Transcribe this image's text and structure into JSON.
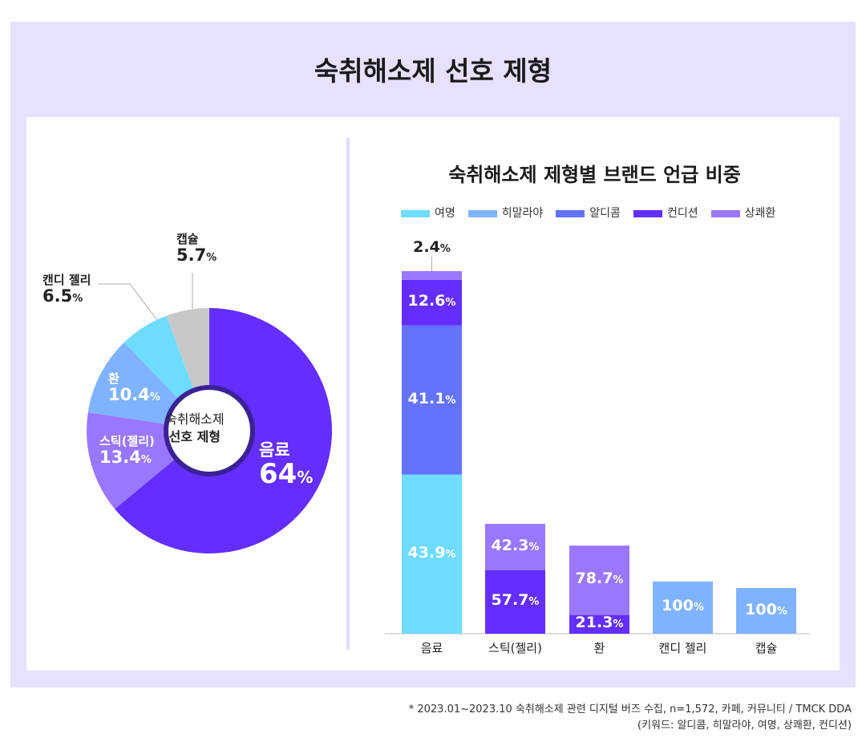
{
  "title": "숙취해소제 선호 제형",
  "chart_data": [
    {
      "type": "pie",
      "center_label": [
        "숙취해소제",
        "선호 제형"
      ],
      "unit": "%",
      "slices": [
        {
          "name": "음료",
          "value": 64,
          "label": "64",
          "color": "#632eff"
        },
        {
          "name": "스틱(젤리)",
          "value": 13.4,
          "label": "13.4",
          "color": "#9a77ff"
        },
        {
          "name": "환",
          "value": 10.4,
          "label": "10.4",
          "color": "#80b3ff"
        },
        {
          "name": "캔디 젤리",
          "value": 6.5,
          "label": "6.5",
          "color": "#6edcff"
        },
        {
          "name": "캡슐",
          "value": 5.7,
          "label": "5.7",
          "color": "#c7c7ca"
        }
      ]
    },
    {
      "type": "bar",
      "stacked": true,
      "title": "숙취해소제 제형별 브랜드 언급 비중",
      "legend_position": "top",
      "unit": "%",
      "series_names": [
        "여명",
        "히말라야",
        "알디콤",
        "컨디션",
        "상쾌환"
      ],
      "series_colors": [
        "#6edcff",
        "#80b3ff",
        "#6373ff",
        "#632eff",
        "#9a77ff"
      ],
      "categories": [
        "음료",
        "스틱(젤리)",
        "환",
        "캔디 젤리",
        "캡슐"
      ],
      "relative_totals": [
        1,
        0.303,
        0.243,
        0.144,
        0.126
      ],
      "stacks": [
        [
          {
            "series": "여명",
            "value": 43.9
          },
          {
            "series": "알디콤",
            "value": 41.1
          },
          {
            "series": "컨디션",
            "value": 12.6
          },
          {
            "series": "상쾌환",
            "value": 2.4
          }
        ],
        [
          {
            "series": "컨디션",
            "value": 57.7
          },
          {
            "series": "상쾌환",
            "value": 42.3
          }
        ],
        [
          {
            "series": "컨디션",
            "value": 21.3
          },
          {
            "series": "상쾌환",
            "value": 78.7
          }
        ],
        [
          {
            "series": "히말라야",
            "value": 100
          }
        ],
        [
          {
            "series": "히말라야",
            "value": 100
          }
        ]
      ]
    }
  ],
  "footnote": [
    "* 2023.01~2023.10 숙취해소제 관련 디지털 버즈 수집, n=1,572, 카페, 커뮤니티 / TMCK DDA",
    "(키워드: 알디콤, 히말라야, 여명, 상쾌환, 컨디션)"
  ]
}
